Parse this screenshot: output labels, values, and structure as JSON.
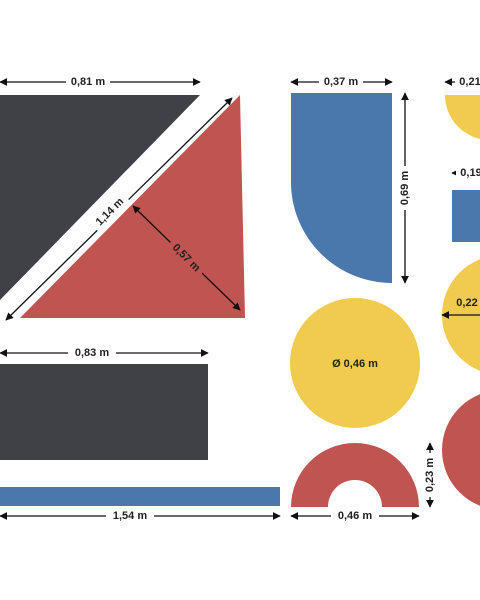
{
  "dimensions": {
    "dark_triangle_width": "0,81 m",
    "diagonal": "1,14 m",
    "red_triangle_height": "0,57 m",
    "blue_shape_width": "0,37 m",
    "blue_shape_height": "0,69 m",
    "yellow_half_width": "0,21",
    "blue_rect_width": "0,19",
    "yellow_circle_right": "0,22",
    "yellow_circle_diameter": "Ø 0,46 m",
    "dark_rect_width": "0,83 m",
    "blue_bar_width": "1,54 m",
    "red_arch_width": "0,46 m",
    "red_arch_height": "0,23 m"
  }
}
